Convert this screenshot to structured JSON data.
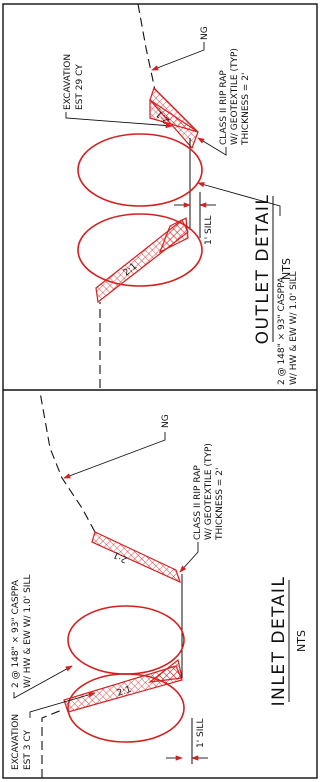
{
  "inlet": {
    "title": "INLET DETAIL",
    "scale": "NTS",
    "excavation": [
      "EXCAVATION",
      "EST 3 CY"
    ],
    "pipe": [
      "2 @ 148\" × 93\" CASPPA",
      "W/ HW & EW W/ 1.0' SILL"
    ],
    "ground": "NG",
    "riprap": [
      "CLASS II RIP RAP",
      "W/ GEOTEXTILE (TYP)",
      "THICKNESS = 2'"
    ],
    "sill": "1' SILL",
    "slopes": [
      "2:1",
      "2:1"
    ]
  },
  "outlet": {
    "title": "OUTLET DETAIL",
    "scale": "NTS",
    "excavation": [
      "EXCAVATION",
      "EST 29 CY"
    ],
    "pipe": [
      "2 @ 148\" × 93\" CASPPA",
      "W/ HW & EW W/ 1.0' SILL"
    ],
    "ground": "NG",
    "riprap": [
      "CLASS II RIP RAP",
      "W/ GEOTEXTILE (TYP)",
      "THICKNESS = 2'"
    ],
    "sill": "1' SILL",
    "slopes": [
      "2:1",
      "2:1"
    ]
  }
}
